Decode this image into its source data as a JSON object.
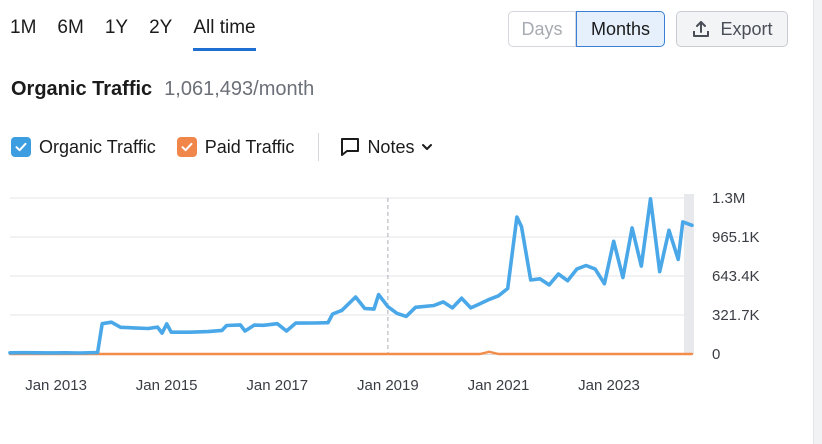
{
  "period_tabs": [
    "1M",
    "6M",
    "1Y",
    "2Y",
    "All time"
  ],
  "active_period": "All time",
  "granularity": {
    "days_label": "Days",
    "months_label": "Months",
    "selected": "Months"
  },
  "export": {
    "label": "Export",
    "icon": "upload-icon"
  },
  "header": {
    "title": "Organic Traffic",
    "metric_value": "1,061,493/month"
  },
  "legend": {
    "organic_label": "Organic Traffic",
    "paid_label": "Paid Traffic",
    "notes_label": "Notes"
  },
  "colors": {
    "organic": "#4aa8e8",
    "paid": "#f28c4b",
    "checkbox_organic": "#3c9de1",
    "checkbox_paid": "#f1864a",
    "grid": "#e4e6ea",
    "accent": "#1f6fd1"
  },
  "chart_data": {
    "type": "line",
    "title": "",
    "xlabel": "",
    "ylabel": "",
    "x_ticks": [
      "Jan 2013",
      "Jan 2015",
      "Jan 2017",
      "Jan 2019",
      "Jan 2021",
      "Jan 2023"
    ],
    "y_ticks": [
      "1.3M",
      "965.1K",
      "643.4K",
      "321.7K",
      "0"
    ],
    "ylim": [
      0,
      1286800
    ],
    "xlim": [
      "2012-03",
      "2024-07"
    ],
    "grid": true,
    "reference_line": "2019-01",
    "series": [
      {
        "name": "Organic Traffic",
        "color": "#4aa8e8",
        "points": [
          [
            "2012-03",
            10000
          ],
          [
            "2012-06",
            11000
          ],
          [
            "2012-09",
            10000
          ],
          [
            "2012-12",
            9000
          ],
          [
            "2013-03",
            10000
          ],
          [
            "2013-06",
            8000
          ],
          [
            "2013-10",
            12000
          ],
          [
            "2013-11",
            250000
          ],
          [
            "2014-01",
            262000
          ],
          [
            "2014-03",
            220000
          ],
          [
            "2014-06",
            215000
          ],
          [
            "2014-09",
            210000
          ],
          [
            "2014-11",
            222000
          ],
          [
            "2014-12",
            172000
          ],
          [
            "2015-01",
            248000
          ],
          [
            "2015-02",
            180000
          ],
          [
            "2015-06",
            180000
          ],
          [
            "2015-10",
            185000
          ],
          [
            "2016-01",
            195000
          ],
          [
            "2016-02",
            235000
          ],
          [
            "2016-05",
            240000
          ],
          [
            "2016-06",
            190000
          ],
          [
            "2016-08",
            238000
          ],
          [
            "2016-10",
            237000
          ],
          [
            "2017-01",
            250000
          ],
          [
            "2017-03",
            190000
          ],
          [
            "2017-05",
            255000
          ],
          [
            "2017-09",
            256000
          ],
          [
            "2017-12",
            258000
          ],
          [
            "2018-01",
            330000
          ],
          [
            "2018-03",
            360000
          ],
          [
            "2018-06",
            470000
          ],
          [
            "2018-08",
            375000
          ],
          [
            "2018-10",
            370000
          ],
          [
            "2018-11",
            490000
          ],
          [
            "2019-01",
            390000
          ],
          [
            "2019-03",
            335000
          ],
          [
            "2019-05",
            310000
          ],
          [
            "2019-07",
            385000
          ],
          [
            "2019-11",
            400000
          ],
          [
            "2020-01",
            430000
          ],
          [
            "2020-03",
            380000
          ],
          [
            "2020-05",
            460000
          ],
          [
            "2020-07",
            380000
          ],
          [
            "2020-09",
            415000
          ],
          [
            "2020-11",
            450000
          ],
          [
            "2021-01",
            480000
          ],
          [
            "2021-03",
            540000
          ],
          [
            "2021-05",
            1130000
          ],
          [
            "2021-06",
            1050000
          ],
          [
            "2021-08",
            610000
          ],
          [
            "2021-10",
            620000
          ],
          [
            "2021-12",
            570000
          ],
          [
            "2022-02",
            660000
          ],
          [
            "2022-04",
            605000
          ],
          [
            "2022-06",
            700000
          ],
          [
            "2022-08",
            730000
          ],
          [
            "2022-10",
            700000
          ],
          [
            "2022-12",
            580000
          ],
          [
            "2023-02",
            930000
          ],
          [
            "2023-04",
            630000
          ],
          [
            "2023-06",
            1040000
          ],
          [
            "2023-08",
            725000
          ],
          [
            "2023-10",
            1280000
          ],
          [
            "2023-12",
            680000
          ],
          [
            "2024-02",
            1020000
          ],
          [
            "2024-04",
            780000
          ],
          [
            "2024-05",
            1090000
          ],
          [
            "2024-07",
            1061493
          ]
        ]
      },
      {
        "name": "Paid Traffic",
        "color": "#f28c4b",
        "points": [
          [
            "2012-03",
            0
          ],
          [
            "2020-09",
            0
          ],
          [
            "2020-11",
            18000
          ],
          [
            "2021-01",
            0
          ],
          [
            "2024-07",
            0
          ]
        ]
      }
    ]
  }
}
